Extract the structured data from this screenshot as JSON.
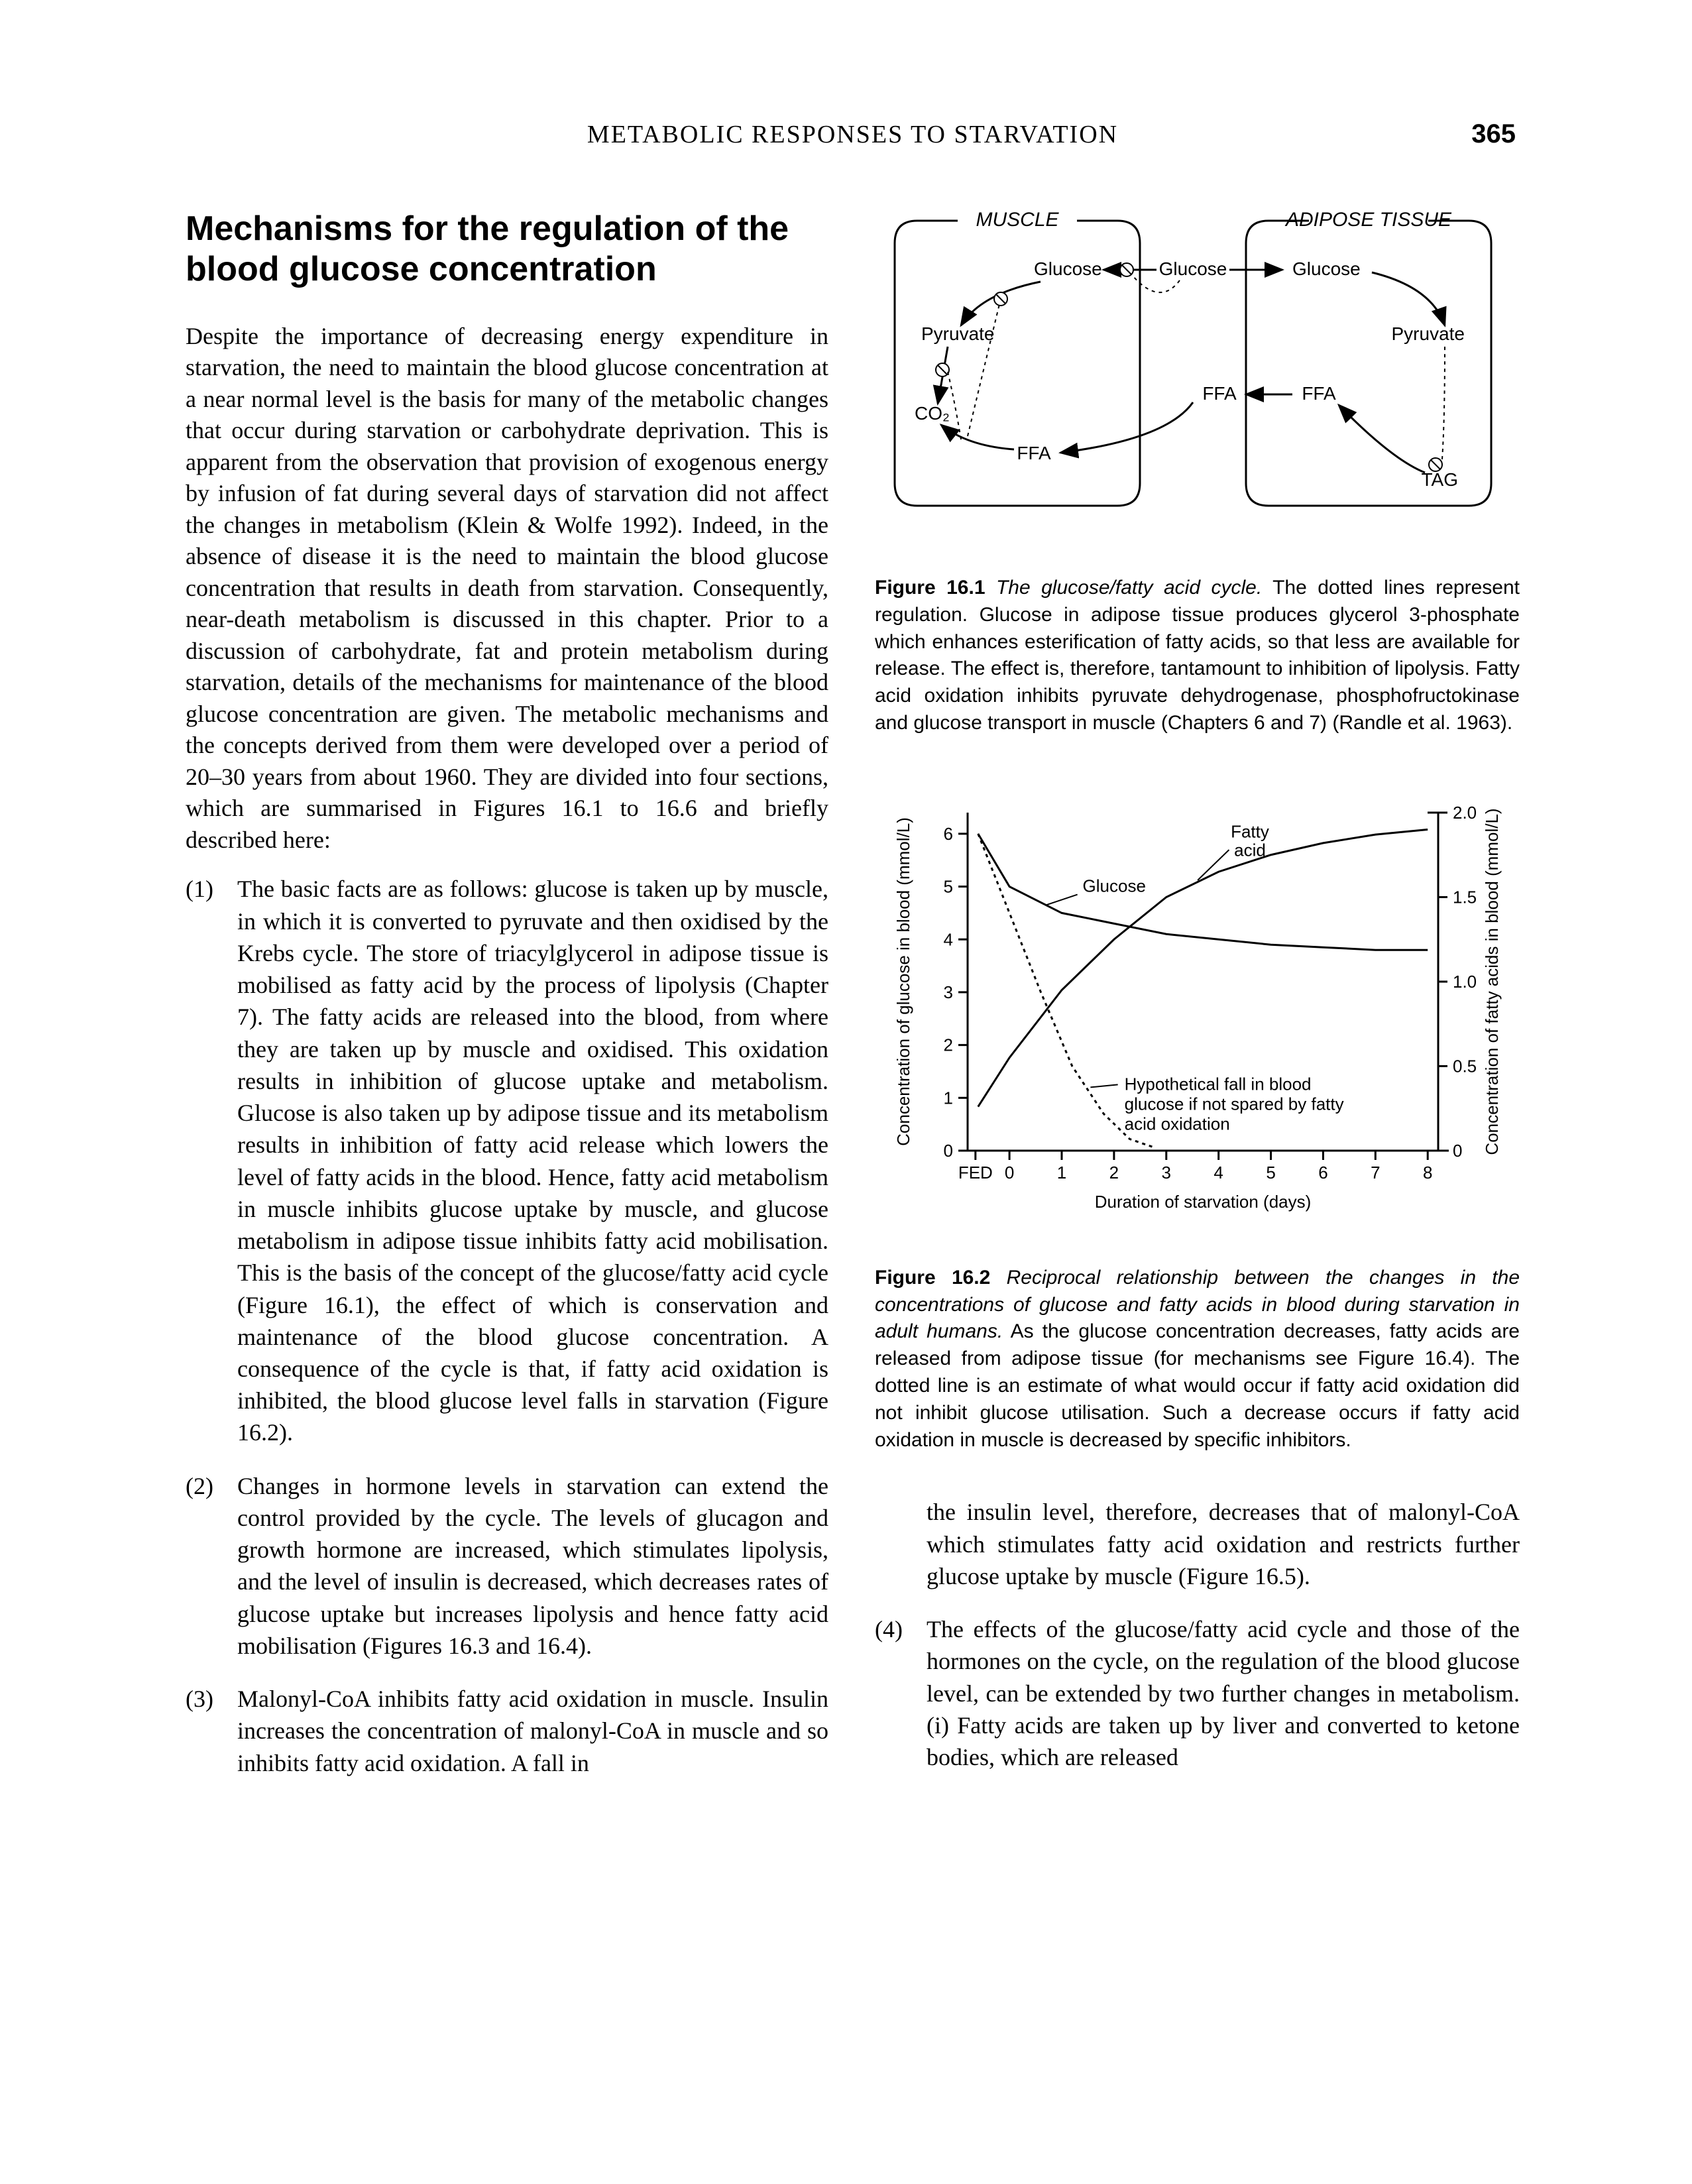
{
  "page": {
    "running_head": "METABOLIC RESPONSES TO STARVATION",
    "page_number": "365"
  },
  "heading": "Mechanisms for the regulation of the blood glucose concentration",
  "para_intro": "Despite the importance of decreasing energy expenditure in starvation, the need to maintain the blood glucose concentration at a near normal level is the basis for many of the metabolic changes that occur during starvation or carbohydrate deprivation. This is apparent from the observation that provision of exogenous energy by infusion of fat during several days of starvation did not affect the changes in metabolism (Klein & Wolfe 1992). Indeed, in the absence of disease it is the need to maintain the blood glucose concentration that results in death from starvation. Consequently, near-death metabolism is discussed in this chapter. Prior to a discussion of carbohydrate, fat and protein metabolism during starvation, details of the mechanisms for maintenance of the blood glucose concentration are given. The metabolic mechanisms and the concepts derived from them were developed over a period of 20–30 years from about 1960. They are divided into four sections, which are summarised in Figures 16.1 to 16.6 and briefly described here:",
  "items": {
    "n1": "(1)",
    "t1": "The basic facts are as follows: glucose is taken up by muscle, in which it is converted to pyruvate and then oxidised by the Krebs cycle. The store of triacylglycerol in adipose tissue is mobilised as fatty acid by the process of lipolysis (Chapter 7). The fatty acids are released into the blood, from where they are taken up by muscle and oxidised. This oxidation results in inhibition of glucose uptake and metabolism. Glucose is also taken up by adipose tissue and its metabolism results in inhibition of fatty acid release which lowers the level of fatty acids in the blood. Hence, fatty acid metabolism in muscle inhibits glucose uptake by muscle, and glucose metabolism in adipose tissue inhibits fatty acid mobilisation. This is the basis of the concept of the glucose/fatty acid cycle (Figure 16.1), the effect of which is conservation and maintenance of the blood glucose concentration. A consequence of the cycle is that, if fatty acid oxidation is inhibited, the blood glucose level falls in starvation (Figure 16.2).",
    "n2": "(2)",
    "t2": "Changes in hormone levels in starvation can extend the control provided by the cycle. The levels of glucagon and growth hormone are increased, which stimulates lipolysis, and the level of insulin is decreased, which decreases rates of glucose uptake but increases lipolysis and hence fatty acid mobilisation (Figures 16.3 and 16.4).",
    "n3": "(3)",
    "t3": "Malonyl-CoA inhibits fatty acid oxidation in muscle. Insulin increases the concentration of malonyl-CoA in muscle and so inhibits fatty acid oxidation. A fall in",
    "n3b": "",
    "t3b": "the insulin level, therefore, decreases that of malonyl-CoA which stimulates fatty acid oxidation and restricts further glucose uptake by muscle (Figure 16.5).",
    "n4": "(4)",
    "t4": "The effects of the glucose/fatty acid cycle and those of the hormones on the cycle, on the regulation of the blood glucose level, can be extended by two further changes in metabolism. (i) Fatty acids are taken up by liver and converted to ketone bodies, which are released"
  },
  "fig161": {
    "labels": {
      "muscle": "MUSCLE",
      "adipose": "ADIPOSE TISSUE",
      "glucose": "Glucose",
      "pyruvate": "Pyruvate",
      "ffa": "FFA",
      "co2": "CO₂",
      "tag": "TAG"
    },
    "caption_num": "Figure 16.1",
    "caption_title": "The glucose/fatty acid cycle.",
    "caption_rest": " The dotted lines represent regulation. Glucose in adipose tissue produces glycerol 3-phosphate which enhances esterification of fatty acids, so that less are available for release. The effect is, therefore, tantamount to inhibition of lipolysis. Fatty acid oxidation inhibits pyruvate dehydrogenase, phosphofructokinase and glucose transport in muscle (Chapters 6 and 7) (Randle et al. 1963).",
    "colors": {
      "stroke": "#000000",
      "bg": "#ffffff"
    },
    "line_width": 3
  },
  "fig162": {
    "type": "line",
    "x_label": "Duration of starvation (days)",
    "y_left_label": "Concentration of glucose in blood (mmol/L)",
    "y_right_label": "Concentration of fatty acids in blood (mmol/L)",
    "x_ticks": [
      "FED",
      "0",
      "1",
      "2",
      "3",
      "4",
      "5",
      "6",
      "7",
      "8"
    ],
    "y_left_ticks": [
      0,
      1,
      2,
      3,
      4,
      5,
      6
    ],
    "y_right_ticks": [
      0,
      0.5,
      1.0,
      1.5,
      2.0
    ],
    "y_left_lim": [
      0,
      6.4
    ],
    "y_right_lim": [
      0,
      2.0
    ],
    "x_lim": [
      -0.8,
      8.2
    ],
    "series": {
      "glucose": {
        "label": "Glucose",
        "dash": "none",
        "points": [
          [
            -0.6,
            6.0
          ],
          [
            0,
            5.0
          ],
          [
            1,
            4.5
          ],
          [
            2,
            4.3
          ],
          [
            3,
            4.1
          ],
          [
            4,
            4.0
          ],
          [
            5,
            3.9
          ],
          [
            6,
            3.85
          ],
          [
            7,
            3.8
          ],
          [
            8,
            3.8
          ]
        ]
      },
      "fatty_acid": {
        "label": "Fatty acid",
        "label2": "",
        "right_axis": true,
        "dash": "none",
        "points": [
          [
            -0.6,
            0.26
          ],
          [
            0,
            0.55
          ],
          [
            1,
            0.95
          ],
          [
            2,
            1.25
          ],
          [
            3,
            1.5
          ],
          [
            4,
            1.65
          ],
          [
            5,
            1.75
          ],
          [
            6,
            1.82
          ],
          [
            7,
            1.87
          ],
          [
            8,
            1.9
          ]
        ]
      },
      "hypothetical": {
        "dash": "5,6",
        "points": [
          [
            -0.6,
            6.0
          ],
          [
            0,
            4.5
          ],
          [
            0.6,
            3.0
          ],
          [
            1.2,
            1.6
          ],
          [
            1.8,
            0.7
          ],
          [
            2.3,
            0.22
          ],
          [
            2.8,
            0.05
          ]
        ]
      }
    },
    "annotation": "Hypothetical fall in blood glucose if not spared by fatty acid oxidation",
    "caption_num": "Figure 16.2",
    "caption_title": "Reciprocal relationship between the changes in the concentrations of glucose and fatty acids in blood during starvation in adult humans.",
    "caption_rest": " As the glucose concentration decreases, fatty acids are released from adipose tissue (for mechanisms see Figure 16.4). The dotted line is an estimate of what would occur if fatty acid oxidation did not inhibit glucose utilisation. Such a decrease occurs if fatty acid oxidation in muscle is decreased by specific inhibitors.",
    "colors": {
      "axis": "#000000",
      "line": "#000000",
      "bg": "#ffffff"
    },
    "line_width": 3,
    "tick_fontsize": 26,
    "label_fontsize": 26
  }
}
